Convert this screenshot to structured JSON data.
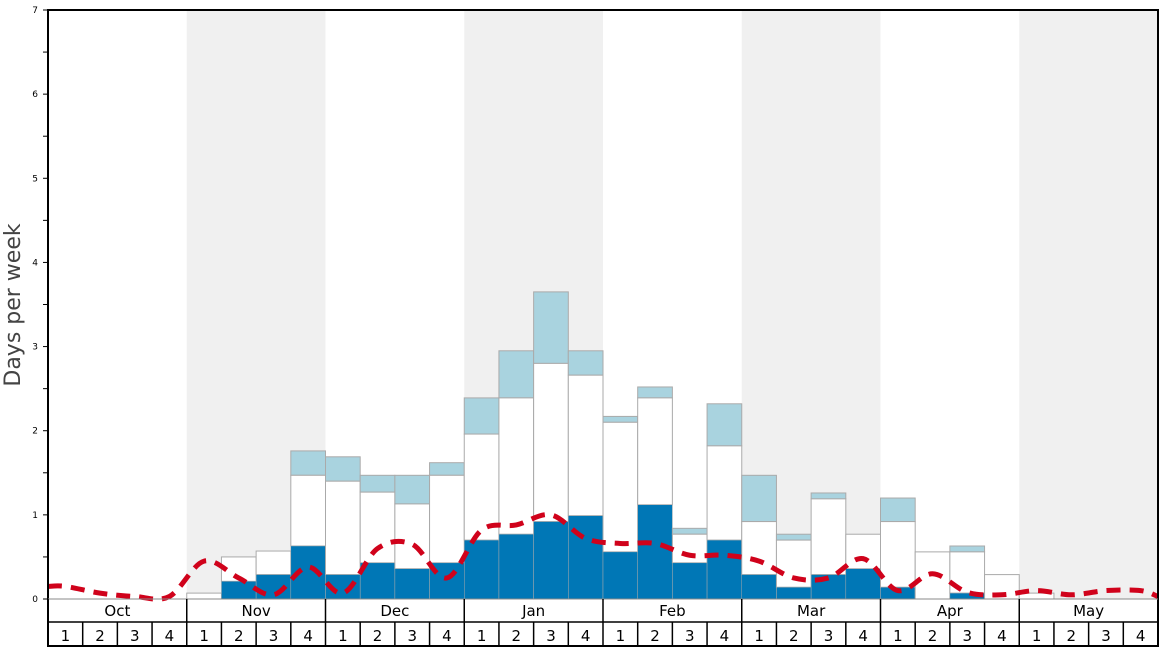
{
  "chart_data": {
    "type": "bar",
    "stacked": true,
    "title": "",
    "xlabel": "",
    "ylabel": "Days per week",
    "ylim": [
      0,
      7
    ],
    "yticks": [
      "0",
      "1",
      "2",
      "3",
      "4",
      "5",
      "6",
      "7"
    ],
    "months": [
      "Oct",
      "Nov",
      "Dec",
      "Jan",
      "Feb",
      "Mar",
      "Apr",
      "May"
    ],
    "week_labels": [
      "1",
      "2",
      "3",
      "4"
    ],
    "shaded_months": [
      "Nov",
      "Jan",
      "Mar",
      "May"
    ],
    "colors": {
      "dark": "#0077b6",
      "middle": "#ffffff",
      "light": "#a9d3df",
      "line": "#d0021b",
      "shade": "#f0f0f0",
      "bar_border": "#aaaaaa"
    },
    "series": [
      {
        "layer": "dark",
        "values": [
          0,
          0,
          0,
          0,
          0,
          0.21,
          0.29,
          0.63,
          0.29,
          0.43,
          0.36,
          0.43,
          0.7,
          0.77,
          0.92,
          0.99,
          0.56,
          1.12,
          0.43,
          0.7,
          0.29,
          0.14,
          0.29,
          0.36,
          0.14,
          0,
          0.07,
          0,
          0,
          0,
          0,
          0
        ]
      },
      {
        "layer": "middle-cumulative",
        "values": [
          0,
          0,
          0,
          0,
          0.07,
          0.5,
          0.57,
          1.47,
          1.4,
          1.27,
          1.13,
          1.47,
          1.96,
          2.39,
          2.8,
          2.66,
          2.1,
          2.39,
          0.77,
          1.82,
          0.92,
          0.7,
          1.19,
          0.77,
          0.92,
          0.56,
          0.56,
          0.29,
          0.07,
          0,
          0,
          0
        ]
      },
      {
        "layer": "light-cumulative",
        "values": [
          0,
          0,
          0,
          0,
          0.07,
          0.5,
          0.57,
          1.76,
          1.69,
          1.47,
          1.47,
          1.62,
          2.39,
          2.95,
          3.65,
          2.95,
          2.17,
          2.52,
          0.84,
          2.32,
          1.47,
          0.77,
          1.26,
          0.77,
          1.2,
          0.56,
          0.63,
          0.29,
          0.07,
          0,
          0,
          0
        ]
      }
    ],
    "line": {
      "style": "dashed",
      "values": [
        0.15,
        0.07,
        0.03,
        0.03,
        0.45,
        0.25,
        0.05,
        0.38,
        0.07,
        0.6,
        0.65,
        0.25,
        0.82,
        0.88,
        1.0,
        0.72,
        0.66,
        0.66,
        0.52,
        0.52,
        0.45,
        0.25,
        0.25,
        0.48,
        0.1,
        0.3,
        0.08,
        0.05,
        0.1,
        0.05,
        0.1,
        0.1
      ]
    },
    "grid": false
  }
}
